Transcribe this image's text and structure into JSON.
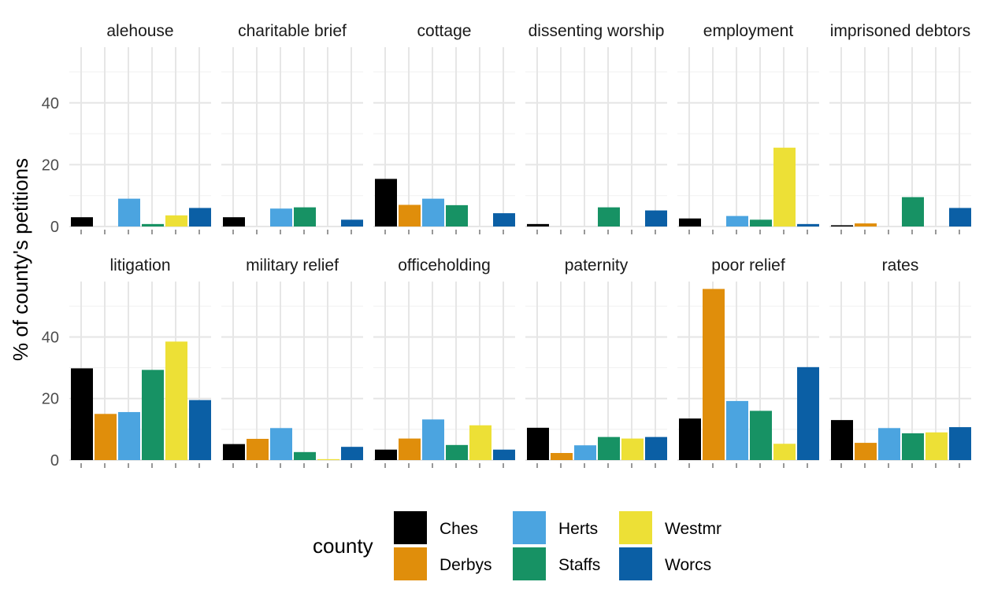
{
  "chart_data": {
    "type": "bar",
    "ylabel": "% of county's petitions",
    "xlabel": "",
    "ylim": [
      0,
      58
    ],
    "yticks": [
      0,
      20,
      40
    ],
    "grid": true,
    "legend": {
      "title": "county",
      "position": "bottom"
    },
    "series_names": [
      "Ches",
      "Derbys",
      "Herts",
      "Staffs",
      "Westmr",
      "Worcs"
    ],
    "colors": [
      "#000000",
      "#E08E0B",
      "#4BA4E0",
      "#179264",
      "#EDE036",
      "#0B5FA5"
    ],
    "facets": [
      {
        "label": "alehouse",
        "values": [
          3.0,
          null,
          9.0,
          0.8,
          3.6,
          6.0
        ]
      },
      {
        "label": "charitable brief",
        "values": [
          3.0,
          null,
          5.8,
          6.2,
          null,
          2.2
        ]
      },
      {
        "label": "cottage",
        "values": [
          15.4,
          7.0,
          9.0,
          6.9,
          null,
          4.3
        ]
      },
      {
        "label": "dissenting worship",
        "values": [
          0.8,
          null,
          null,
          6.2,
          null,
          5.2
        ]
      },
      {
        "label": "employment",
        "values": [
          2.6,
          null,
          3.4,
          2.2,
          25.5,
          0.8
        ]
      },
      {
        "label": "imprisoned debtors",
        "values": [
          0.4,
          1.0,
          null,
          9.5,
          null,
          6.0
        ]
      },
      {
        "label": "litigation",
        "values": [
          29.8,
          15.0,
          15.6,
          29.3,
          38.5,
          19.5
        ]
      },
      {
        "label": "military relief",
        "values": [
          5.2,
          6.9,
          10.4,
          2.6,
          0.3,
          4.3
        ]
      },
      {
        "label": "officeholding",
        "values": [
          3.4,
          7.0,
          13.2,
          4.9,
          11.3,
          3.4
        ]
      },
      {
        "label": "paternity",
        "values": [
          10.5,
          2.3,
          4.8,
          7.5,
          7.0,
          7.5
        ]
      },
      {
        "label": "poor relief",
        "values": [
          13.5,
          55.6,
          19.2,
          16.0,
          5.3,
          30.2
        ]
      },
      {
        "label": "rates",
        "values": [
          13.0,
          5.6,
          10.4,
          8.7,
          9.0,
          10.7
        ]
      }
    ]
  }
}
